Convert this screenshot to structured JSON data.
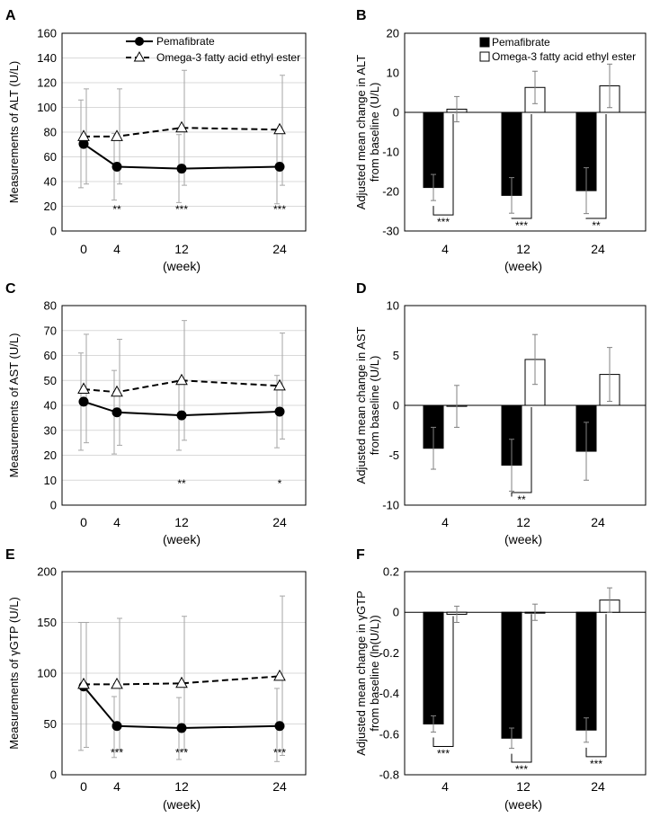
{
  "chart_data": [
    {
      "panel": "A",
      "type": "line",
      "ylabel": "Measurements of ALT (U/L)",
      "xlabel": "(week)",
      "ylim": [
        0,
        160
      ],
      "yticks": [
        0,
        20,
        40,
        60,
        80,
        100,
        120,
        140,
        160
      ],
      "x": [
        0,
        4,
        12,
        24
      ],
      "grid": true,
      "legend": "top-right",
      "series": [
        {
          "name": "Pemafibrate",
          "values": [
            70.5,
            52,
            50.5,
            52
          ],
          "err_low": [
            35,
            25,
            23,
            22
          ],
          "err_high": [
            106,
            79,
            78,
            82
          ],
          "color": "#000000",
          "marker": "filled-circle",
          "line": "solid"
        },
        {
          "name": "Omega-3 fatty acid ethyl ester",
          "values": [
            76.5,
            76.5,
            83.5,
            82
          ],
          "err_low": [
            38,
            38,
            37,
            37
          ],
          "err_high": [
            115,
            115,
            130,
            126
          ],
          "color": "#000000",
          "marker": "open-triangle",
          "line": "dashed"
        }
      ],
      "annotations": [
        {
          "x": 4,
          "text": "**"
        },
        {
          "x": 12,
          "text": "***"
        },
        {
          "x": 24,
          "text": "***"
        }
      ]
    },
    {
      "panel": "B",
      "type": "bar",
      "ylabel": "Adjusted mean change in ALT from baseline (U/L)",
      "xlabel": "(week)",
      "ylim": [
        -30,
        20
      ],
      "yticks": [
        -30,
        -20,
        -10,
        0,
        10,
        20
      ],
      "categories": [
        "4",
        "12",
        "24"
      ],
      "grid": false,
      "legend": "top",
      "series": [
        {
          "name": "Pemafibrate",
          "values": [
            -19,
            -21,
            -19.8
          ],
          "err": [
            3.3,
            4.5,
            5.8
          ],
          "fill": "#000000"
        },
        {
          "name": "Omega-3 fatty acid ethyl ester",
          "values": [
            0.8,
            6.3,
            6.7
          ],
          "err": [
            3.2,
            4.1,
            5.5
          ],
          "fill": "#ffffff"
        }
      ],
      "brackets": [
        {
          "cat": 0,
          "text": "***"
        },
        {
          "cat": 1,
          "text": "***"
        },
        {
          "cat": 2,
          "text": "**"
        }
      ]
    },
    {
      "panel": "C",
      "type": "line",
      "ylabel": "Measurements of AST (U/L)",
      "xlabel": "(week)",
      "ylim": [
        0,
        80
      ],
      "yticks": [
        0,
        10,
        20,
        30,
        40,
        50,
        60,
        70,
        80
      ],
      "x": [
        0,
        4,
        12,
        24
      ],
      "grid": true,
      "series": [
        {
          "name": "Pemafibrate",
          "values": [
            41.5,
            37.2,
            36,
            37.5
          ],
          "err_low": [
            22,
            20.5,
            22,
            23
          ],
          "err_high": [
            61,
            54,
            50,
            52
          ],
          "color": "#000000",
          "marker": "filled-circle",
          "line": "solid"
        },
        {
          "name": "Omega-3 fatty acid ethyl ester",
          "values": [
            46.5,
            45.3,
            50,
            47.8
          ],
          "err_low": [
            25,
            24,
            26,
            26.5
          ],
          "err_high": [
            68.5,
            66.5,
            74,
            69
          ],
          "color": "#000000",
          "marker": "open-triangle",
          "line": "dashed"
        }
      ],
      "annotations": [
        {
          "x": 12,
          "text": "**"
        },
        {
          "x": 24,
          "text": "*"
        }
      ]
    },
    {
      "panel": "D",
      "type": "bar",
      "ylabel": "Adjusted mean change in AST from baseline (U/L)",
      "xlabel": "(week)",
      "ylim": [
        -10,
        10
      ],
      "yticks": [
        -10,
        -5,
        0,
        5,
        10
      ],
      "categories": [
        "4",
        "12",
        "24"
      ],
      "grid": false,
      "series": [
        {
          "name": "Pemafibrate",
          "values": [
            -4.3,
            -6,
            -4.6
          ],
          "err": [
            2.1,
            2.6,
            2.9
          ],
          "fill": "#000000"
        },
        {
          "name": "Omega-3 fatty acid ethyl ester",
          "values": [
            -0.1,
            4.6,
            3.1
          ],
          "err": [
            2.1,
            2.5,
            2.7
          ],
          "fill": "#ffffff"
        }
      ],
      "brackets": [
        {
          "cat": 1,
          "text": "**"
        }
      ]
    },
    {
      "panel": "E",
      "type": "line",
      "ylabel": "Measurements of γGTP (U/L)",
      "xlabel": "(week)",
      "ylim": [
        0,
        200
      ],
      "yticks": [
        0,
        50,
        100,
        150,
        200
      ],
      "x": [
        0,
        4,
        12,
        24
      ],
      "grid": true,
      "series": [
        {
          "name": "Pemafibrate",
          "values": [
            87,
            48,
            46,
            48
          ],
          "err_low": [
            24,
            17,
            15,
            13
          ],
          "err_high": [
            150,
            77,
            76,
            85
          ],
          "color": "#000000",
          "marker": "filled-circle",
          "line": "solid"
        },
        {
          "name": "Omega-3 fatty acid ethyl ester",
          "values": [
            89,
            89,
            90,
            97
          ],
          "err_low": [
            27,
            25,
            25,
            19
          ],
          "err_high": [
            150,
            154,
            156,
            176
          ],
          "color": "#000000",
          "marker": "open-triangle",
          "line": "dashed"
        }
      ],
      "annotations": [
        {
          "x": 4,
          "text": "***"
        },
        {
          "x": 12,
          "text": "***"
        },
        {
          "x": 24,
          "text": "***"
        }
      ]
    },
    {
      "panel": "F",
      "type": "bar",
      "ylabel": "Adjusted mean change in γGTP from baseline (ln(U/L))",
      "xlabel": "(week)",
      "ylim": [
        -0.8,
        0.2
      ],
      "yticks": [
        -0.8,
        -0.6,
        -0.4,
        -0.2,
        0,
        0.2
      ],
      "categories": [
        "4",
        "12",
        "24"
      ],
      "grid": false,
      "series": [
        {
          "name": "Pemafibrate",
          "values": [
            -0.55,
            -0.62,
            -0.58
          ],
          "err": [
            0.04,
            0.05,
            0.06
          ],
          "fill": "#000000"
        },
        {
          "name": "Omega-3 fatty acid ethyl ester",
          "values": [
            -0.01,
            0,
            0.06
          ],
          "err": [
            0.04,
            0.04,
            0.06
          ],
          "fill": "#ffffff"
        }
      ],
      "brackets": [
        {
          "cat": 0,
          "text": "***"
        },
        {
          "cat": 1,
          "text": "***"
        },
        {
          "cat": 2,
          "text": "***"
        }
      ]
    }
  ]
}
